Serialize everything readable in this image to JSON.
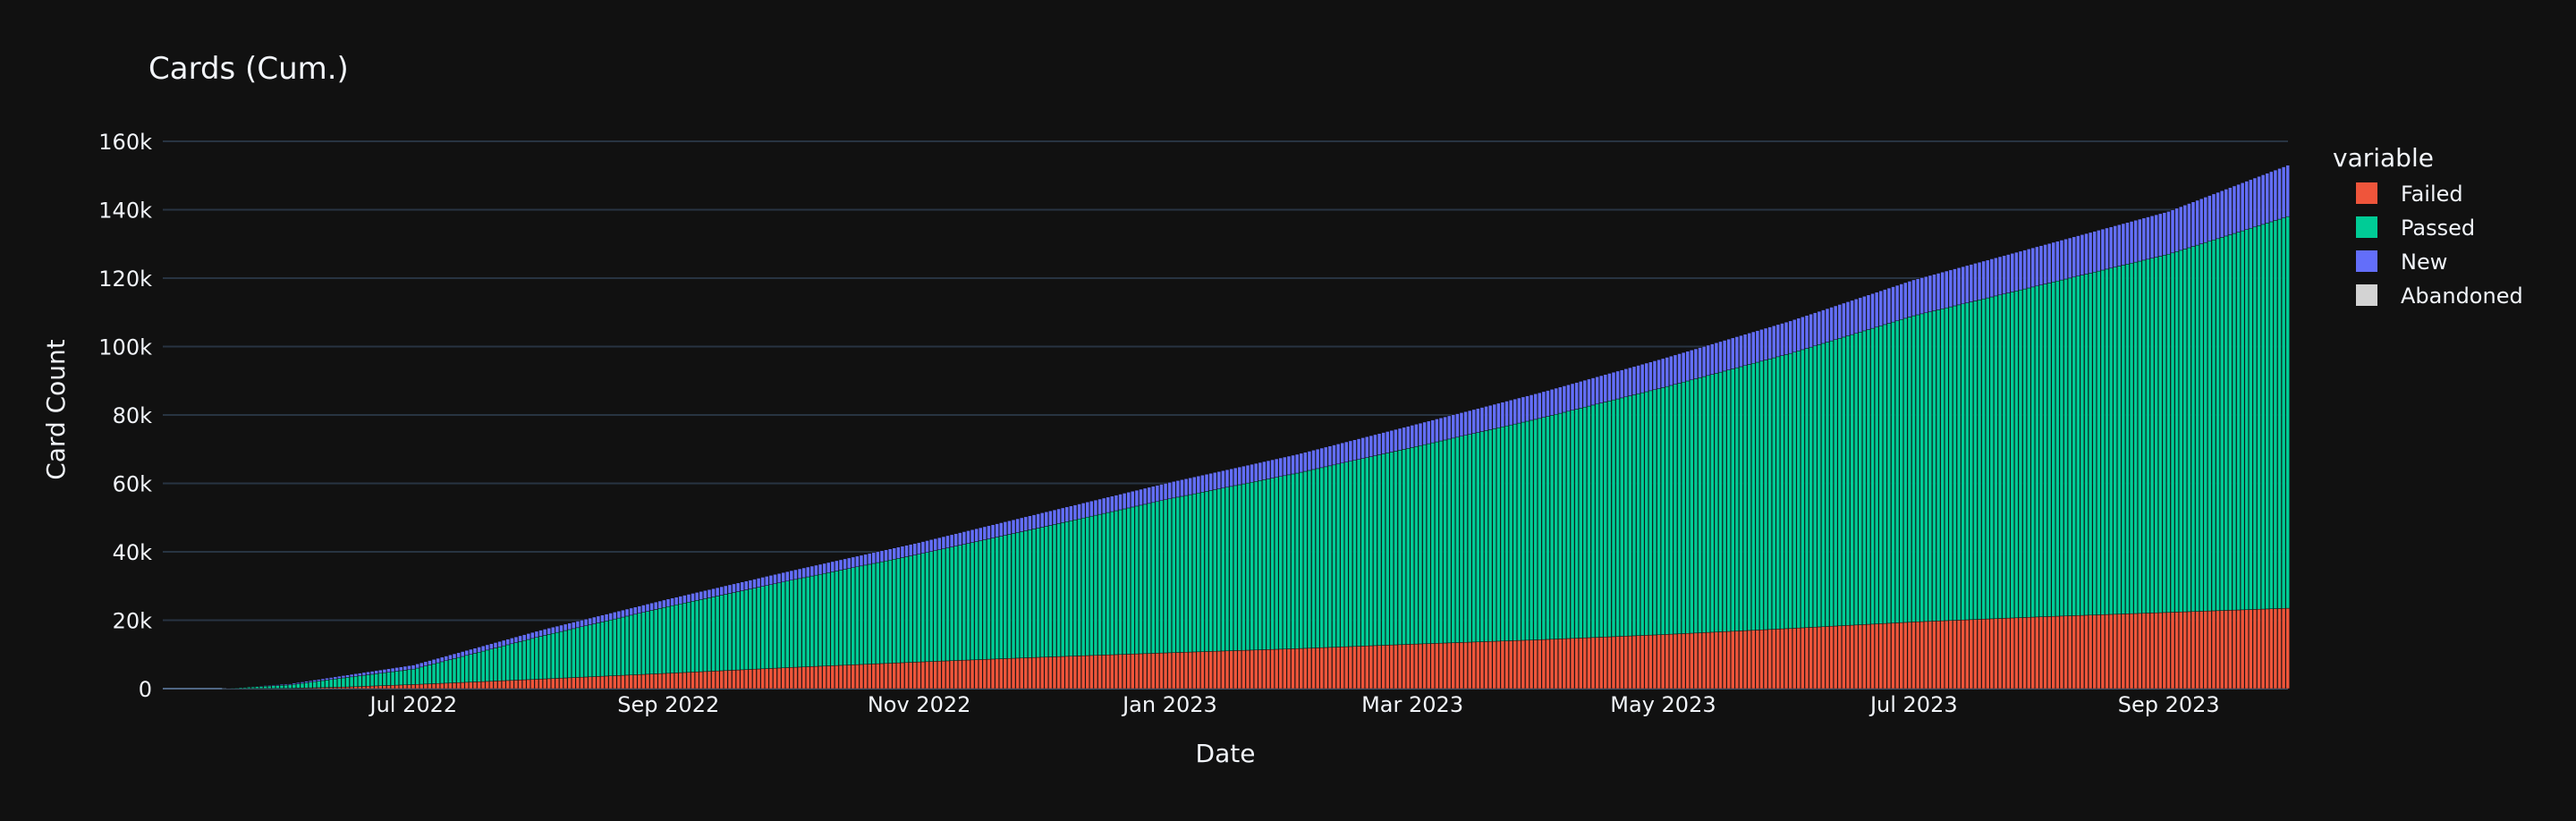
{
  "chart_data": {
    "type": "bar",
    "barmode": "stack",
    "title": "Cards (Cum.)",
    "xlabel": "Date",
    "ylabel": "Card Count",
    "x_range": [
      "2022-05-01",
      "2023-09-30"
    ],
    "ylim": [
      0,
      160000
    ],
    "grid": true,
    "legend": {
      "title": "variable",
      "placement": "right",
      "entries": [
        "Failed",
        "Passed",
        "New",
        "Abandoned"
      ]
    },
    "x_ticks": [
      {
        "date": "2022-07-01",
        "label": "Jul 2022"
      },
      {
        "date": "2022-09-01",
        "label": "Sep 2022"
      },
      {
        "date": "2022-11-01",
        "label": "Nov 2022"
      },
      {
        "date": "2023-01-01",
        "label": "Jan 2023"
      },
      {
        "date": "2023-03-01",
        "label": "Mar 2023"
      },
      {
        "date": "2023-05-01",
        "label": "May 2023"
      },
      {
        "date": "2023-07-01",
        "label": "Jul 2023"
      },
      {
        "date": "2023-09-01",
        "label": "Sep 2023"
      }
    ],
    "y_ticks": [
      {
        "value": 0,
        "label": "0"
      },
      {
        "value": 20000,
        "label": "20k"
      },
      {
        "value": 40000,
        "label": "40k"
      },
      {
        "value": 60000,
        "label": "60k"
      },
      {
        "value": 80000,
        "label": "80k"
      },
      {
        "value": 100000,
        "label": "100k"
      },
      {
        "value": 120000,
        "label": "120k"
      },
      {
        "value": 140000,
        "label": "140k"
      },
      {
        "value": 160000,
        "label": "160k"
      }
    ],
    "dates": [
      "2022-05-01",
      "2022-05-15",
      "2022-06-01",
      "2022-06-15",
      "2022-07-01",
      "2022-08-01",
      "2022-09-01",
      "2022-10-01",
      "2022-11-01",
      "2022-12-01",
      "2023-01-01",
      "2023-02-01",
      "2023-03-01",
      "2023-04-01",
      "2023-05-01",
      "2023-06-01",
      "2023-07-01",
      "2023-08-01",
      "2023-09-01",
      "2023-09-30"
    ],
    "series": [
      {
        "name": "Failed",
        "color": "#EF553B",
        "values": [
          0,
          0,
          100,
          500,
          1200,
          2800,
          4500,
          6200,
          7800,
          9200,
          10500,
          11700,
          13000,
          14300,
          15800,
          17600,
          19500,
          21000,
          22300,
          23500
        ]
      },
      {
        "name": "Passed",
        "color": "#00CC96",
        "values": [
          0,
          0,
          1000,
          2800,
          4500,
          12500,
          19500,
          25500,
          31500,
          38000,
          45000,
          51300,
          57500,
          64700,
          72200,
          80400,
          89500,
          97000,
          104700,
          114500
        ]
      },
      {
        "name": "New",
        "color": "#636EFA",
        "values": [
          0,
          0,
          300,
          700,
          1200,
          1800,
          2200,
          2800,
          3400,
          4200,
          4800,
          5500,
          6500,
          7500,
          8500,
          9500,
          10500,
          11500,
          12500,
          15000
        ]
      },
      {
        "name": "Abandoned",
        "color": "#D3D3D3",
        "values": [
          0,
          0,
          0,
          0,
          0,
          0,
          0,
          0,
          0,
          0,
          0,
          0,
          0,
          0,
          0,
          0,
          0,
          0,
          0,
          0
        ]
      }
    ]
  }
}
